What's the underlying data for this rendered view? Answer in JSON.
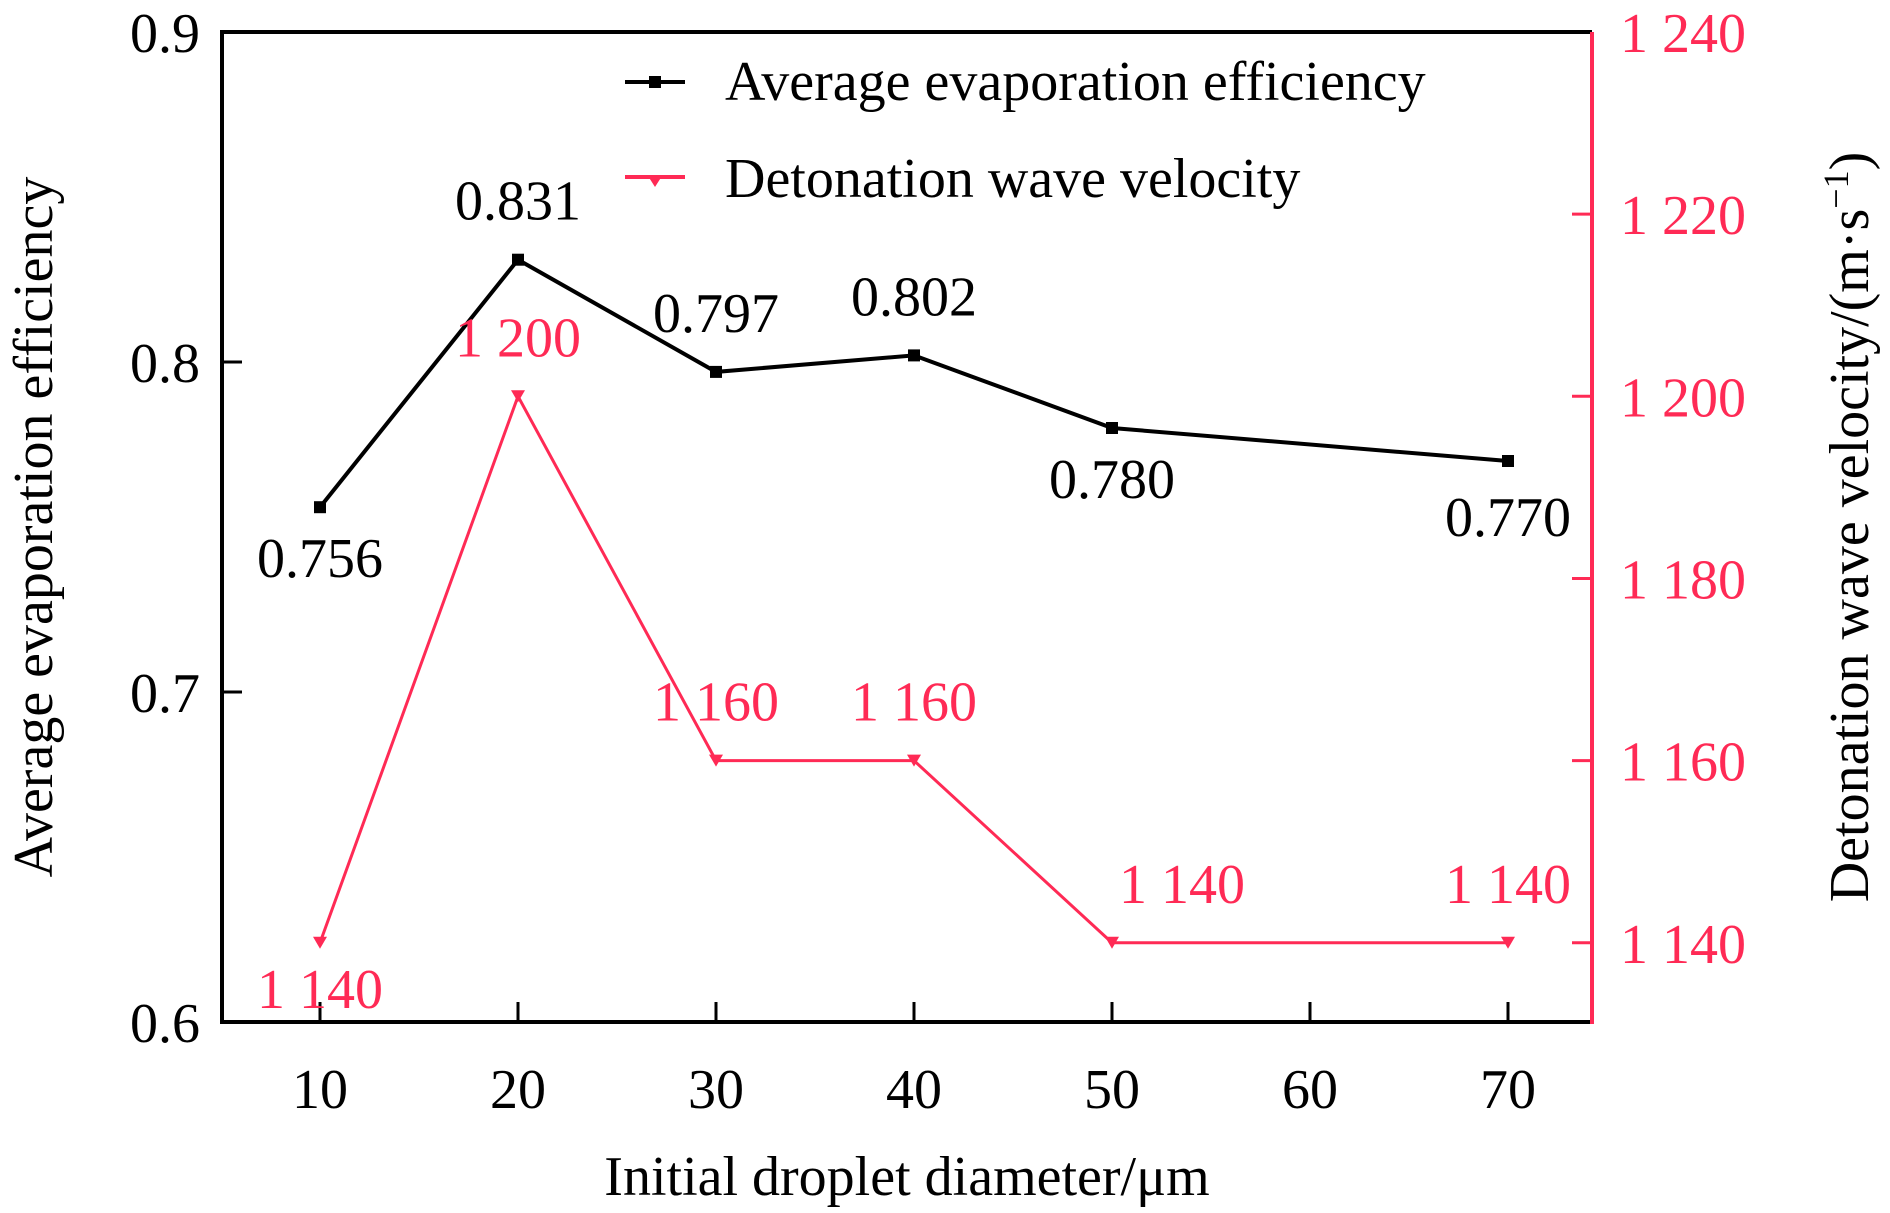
{
  "chart_data": {
    "type": "line",
    "title": "",
    "xlabel": "Initial droplet diameter/μm",
    "ylabel": "Average evaporation efficiency",
    "y2label": "Detonation wave velocity/(m·s⁻¹)",
    "x": [
      10,
      20,
      30,
      40,
      50,
      70
    ],
    "xlim": [
      5,
      75
    ],
    "xticks": [
      10,
      20,
      30,
      40,
      50,
      60,
      70
    ],
    "xtick_labels": [
      "10",
      "20",
      "30",
      "40",
      "50",
      "60",
      "70"
    ],
    "ylim": [
      0.6,
      0.9
    ],
    "yticks": [
      0.6,
      0.7,
      0.8,
      0.9
    ],
    "ytick_labels": [
      "0.6",
      "0.7",
      "0.8",
      "0.9"
    ],
    "y2lim": [
      1131.3,
      1240
    ],
    "y2ticks": [
      1140,
      1160,
      1180,
      1200,
      1220,
      1240
    ],
    "y2tick_labels": [
      "1 140",
      "1 160",
      "1 180",
      "1 200",
      "1 220",
      "1 240"
    ],
    "grid": false,
    "legend_position": "top-right",
    "series": [
      {
        "name": "Average evaporation efficiency",
        "axis": "left",
        "color": "#000000",
        "marker": "square",
        "values": [
          0.756,
          0.831,
          0.797,
          0.802,
          0.78,
          0.77
        ],
        "labels": [
          "0.756",
          "0.831",
          "0.797",
          "0.802",
          "0.780",
          "0.770"
        ]
      },
      {
        "name": "Detonation wave velocity",
        "axis": "right",
        "color": "#ff2a55",
        "marker": "triangle-down",
        "values": [
          1140,
          1200,
          1160,
          1160,
          1140,
          1140
        ],
        "labels": [
          "1 140",
          "1 200",
          "1 160",
          "1 160",
          "1 140",
          "1 140"
        ]
      }
    ]
  }
}
